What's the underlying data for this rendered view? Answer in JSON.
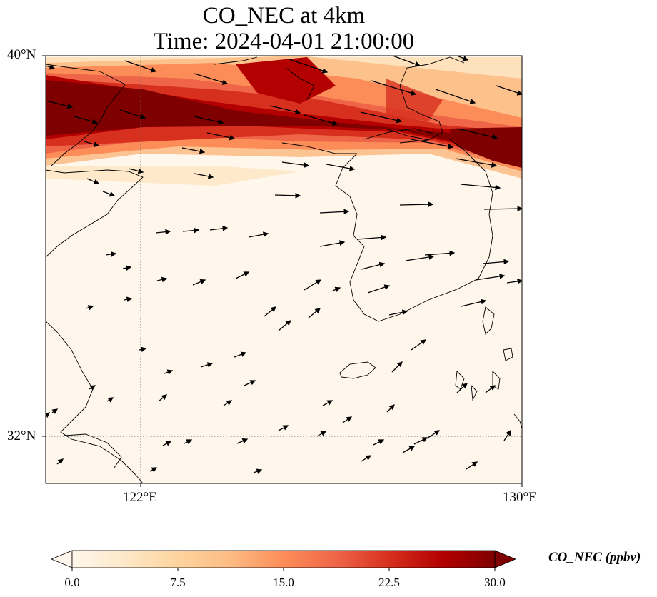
{
  "title": "CO_NEC at 4km",
  "subtitle": "Time: 2024-04-01 21:00:00",
  "map": {
    "lat_labels": [
      "40°N",
      "32°N"
    ],
    "lon_labels": [
      "122°E",
      "130°E"
    ],
    "extent": {
      "lon_min": 120,
      "lon_max": 130,
      "lat_min": 31,
      "lat_max": 40
    },
    "gridlines": {
      "lons": [
        122
      ],
      "lats": [
        32
      ],
      "style": "dotted"
    }
  },
  "colorbar": {
    "label": "CO_NEC (ppbv)",
    "ticks": [
      "0.0",
      "7.5",
      "15.0",
      "22.5",
      "30.0"
    ],
    "vmin": 0,
    "vmax": 30,
    "colormap": "OrRd",
    "extend": "both",
    "colors": [
      "#fff7ec",
      "#fee8c8",
      "#fdd49e",
      "#fdbb84",
      "#fc8d59",
      "#ef6548",
      "#d7301f",
      "#b30000",
      "#7f0000"
    ]
  }
}
